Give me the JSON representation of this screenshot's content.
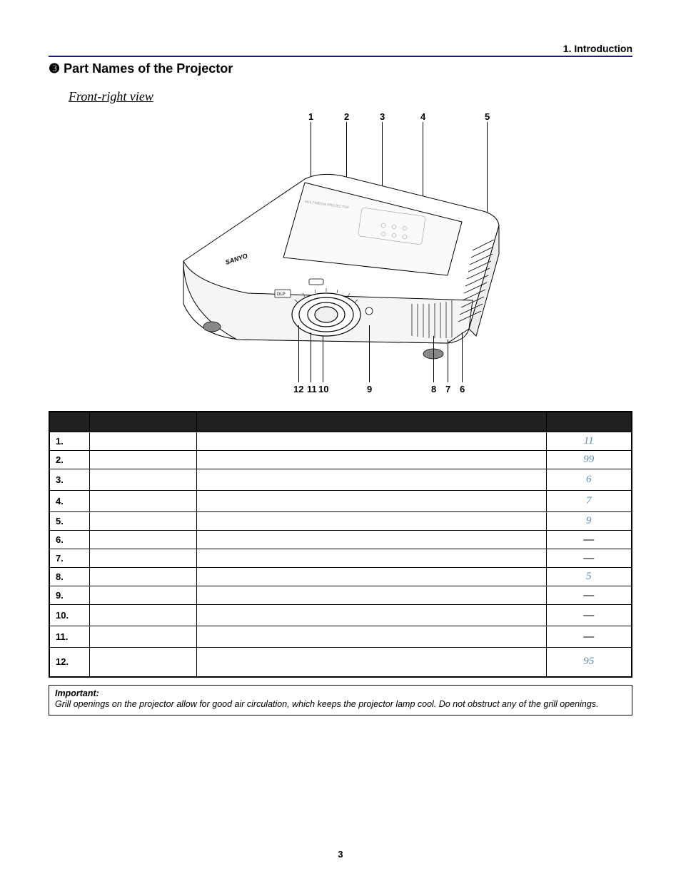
{
  "header": {
    "chapter_label": "1. Introduction",
    "section_number_glyph": "❸",
    "section_title": "Part Names of the Projector",
    "subheading": "Front-right view"
  },
  "diagram": {
    "top_callouts": [
      "1",
      "2",
      "3",
      "4",
      "5"
    ],
    "bottom_callouts": [
      "12",
      "11",
      "10",
      "9",
      "8",
      "7",
      "6"
    ],
    "brand_text": "SANYO",
    "chip_text": "DLP"
  },
  "table": {
    "headers": [
      "",
      "",
      "",
      ""
    ],
    "rows": [
      {
        "num": "1.",
        "label": "",
        "desc": "",
        "page": "11",
        "is_link": true,
        "row_class": ""
      },
      {
        "num": "2.",
        "label": "",
        "desc": "",
        "page": "99",
        "is_link": true,
        "row_class": ""
      },
      {
        "num": "3.",
        "label": "",
        "desc": "",
        "page": "6",
        "is_link": true,
        "row_class": "tall-row"
      },
      {
        "num": "4.",
        "label": "",
        "desc": "",
        "page": "7",
        "is_link": true,
        "row_class": "tall-row"
      },
      {
        "num": "5.",
        "label": "",
        "desc": "",
        "page": "9",
        "is_link": true,
        "row_class": ""
      },
      {
        "num": "6.",
        "label": "",
        "desc": "",
        "page": "—",
        "is_link": false,
        "row_class": ""
      },
      {
        "num": "7.",
        "label": "",
        "desc": "",
        "page": "—",
        "is_link": false,
        "row_class": ""
      },
      {
        "num": "8.",
        "label": "",
        "desc": "",
        "page": "5",
        "is_link": true,
        "row_class": ""
      },
      {
        "num": "9.",
        "label": "",
        "desc": "",
        "page": "—",
        "is_link": false,
        "row_class": ""
      },
      {
        "num": "10.",
        "label": "",
        "desc": "",
        "page": "—",
        "is_link": false,
        "row_class": "tall-row"
      },
      {
        "num": "11.",
        "label": "",
        "desc": "",
        "page": "—",
        "is_link": false,
        "row_class": "tall-row"
      },
      {
        "num": "12.",
        "label": "",
        "desc": "",
        "page": "95",
        "is_link": true,
        "row_class": "taller-row"
      }
    ]
  },
  "important": {
    "label": "Important:",
    "text": "Grill openings on the projector allow for good air circulation, which keeps the projector lamp cool. Do not obstruct any of the grill openings."
  },
  "page_number": "3",
  "colors": {
    "header_rule": "#1a1a8a",
    "link_color": "#5a8fb8",
    "table_header_bg": "#202020"
  }
}
